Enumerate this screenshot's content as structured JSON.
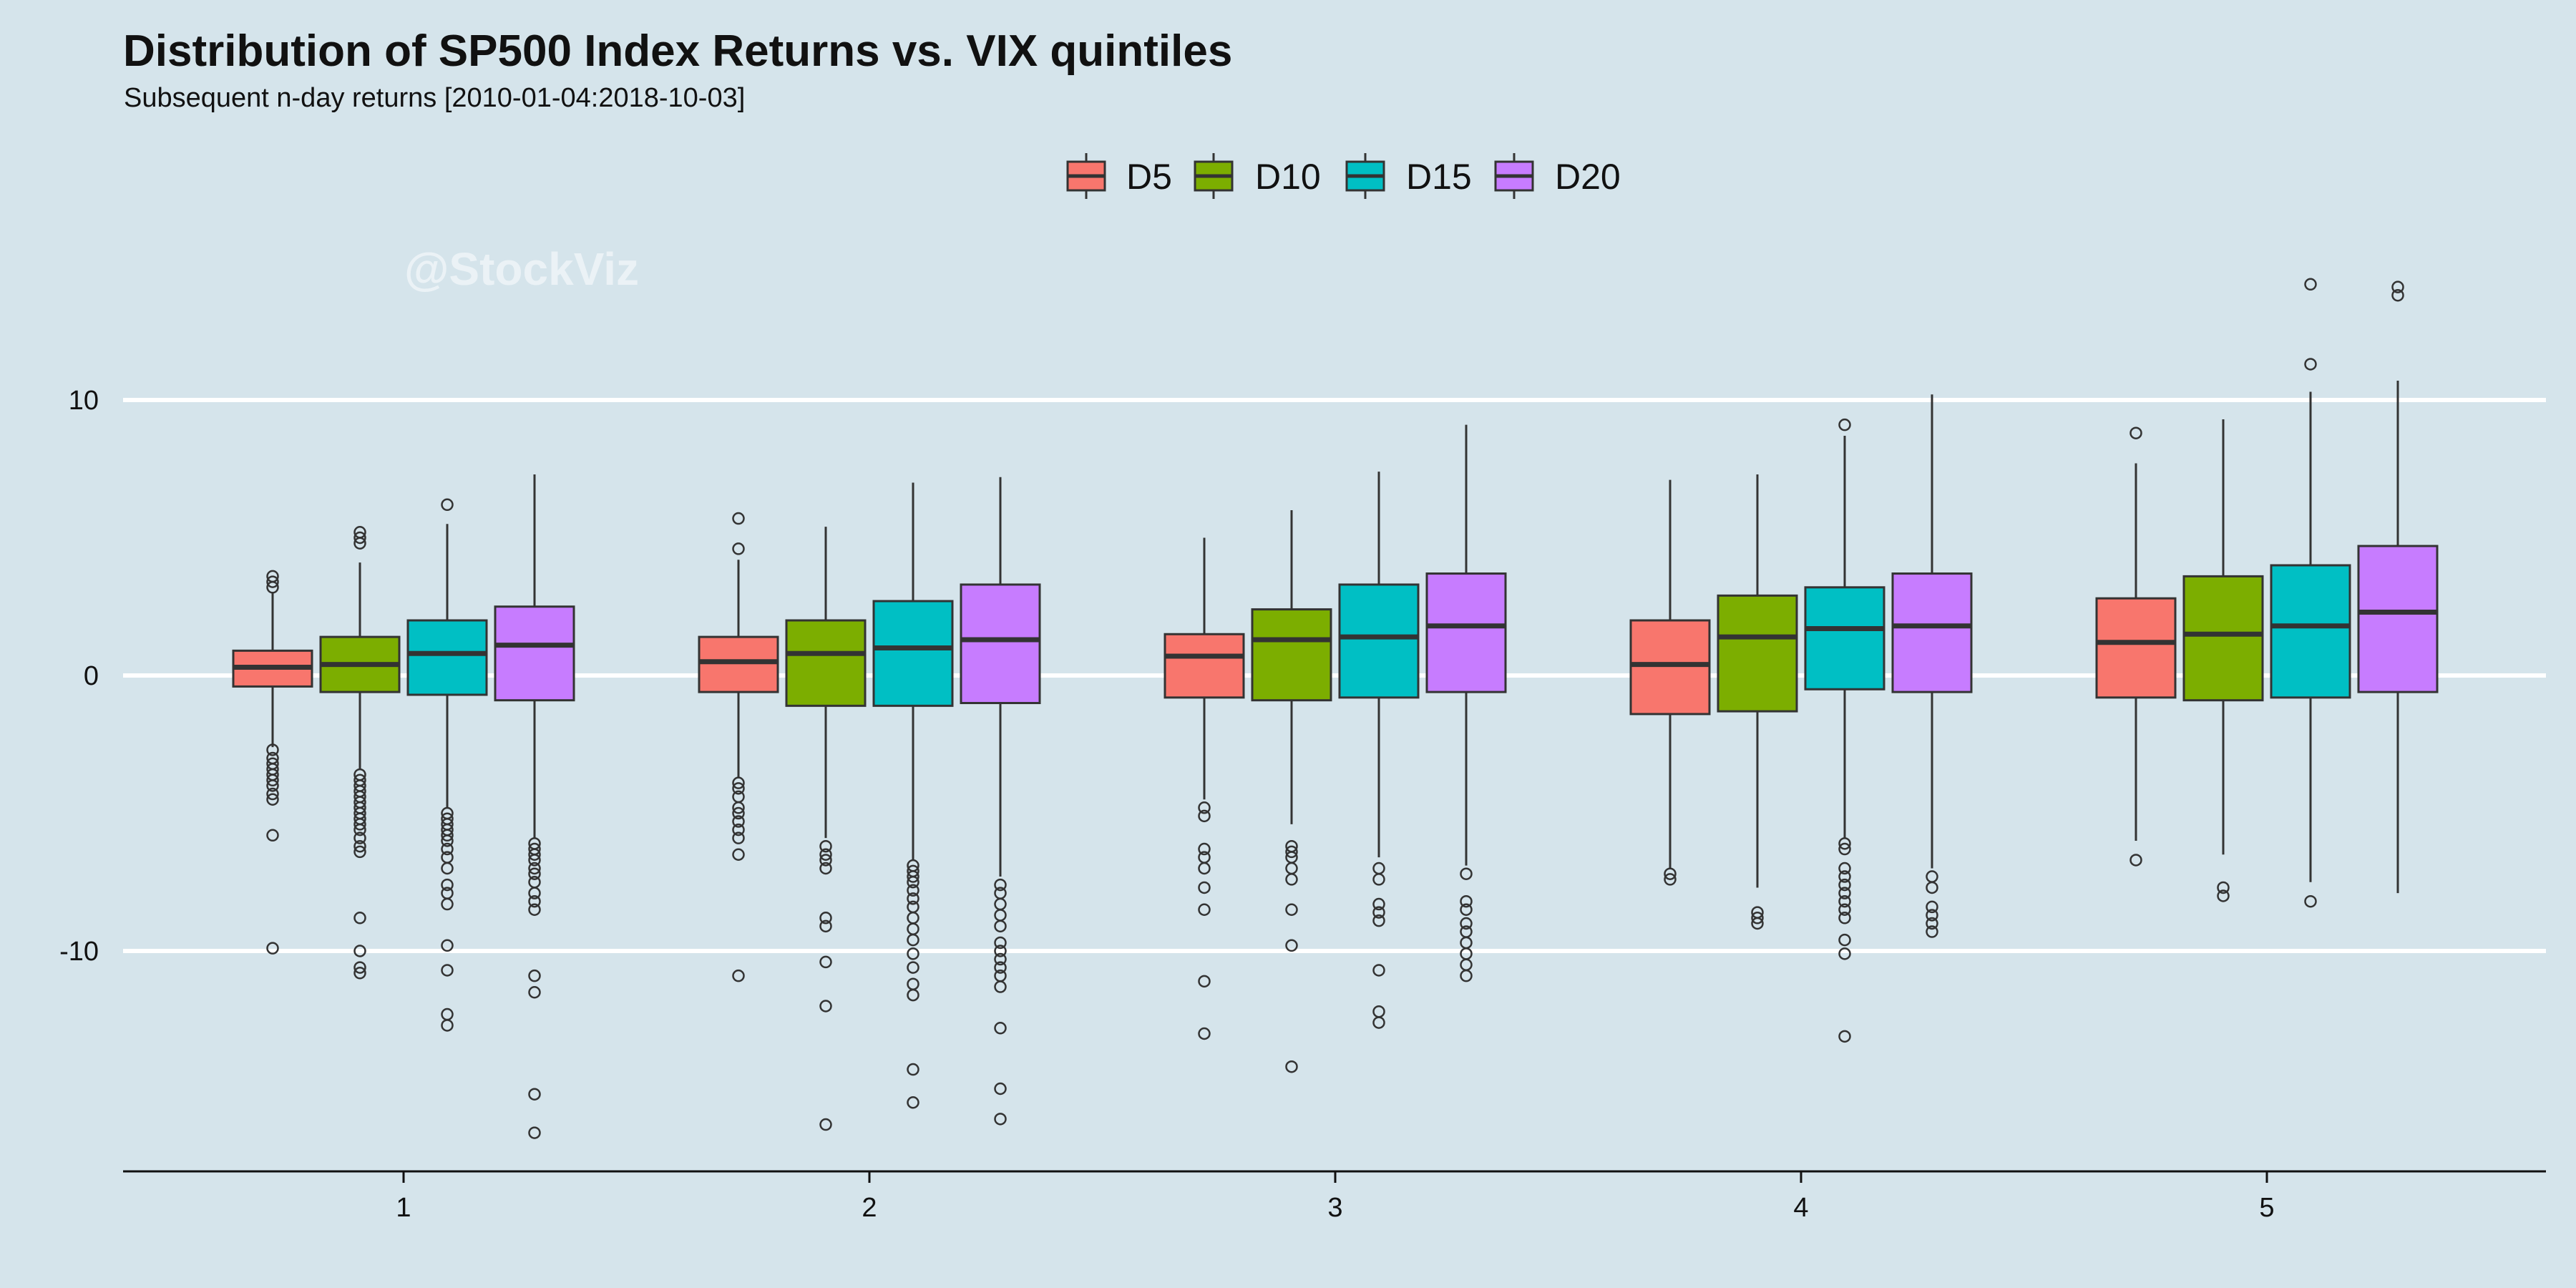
{
  "chart_data": {
    "type": "box",
    "title": "Distribution of SP500 Index Returns vs. VIX quintiles",
    "subtitle": "Subsequent n-day returns [2010-01-04:2018-10-03]",
    "watermark": "@StockViz",
    "xlabel": "",
    "ylabel": "",
    "categories": [
      "1",
      "2",
      "3",
      "4",
      "5"
    ],
    "y_ticks": [
      -10,
      0,
      10
    ],
    "y_tick_labels": [
      "-10",
      "0",
      "10"
    ],
    "ylim": [
      -18,
      16
    ],
    "grid": "horizontal major",
    "legend_position": "top",
    "colors": {
      "background": "#d5e4eb",
      "grid": "#ffffff",
      "D5": "#f8766d",
      "D10": "#7cae00",
      "D15": "#00bfc4",
      "D20": "#c77cff"
    },
    "series": [
      {
        "name": "D5",
        "color": "#f8766d",
        "boxes": [
          {
            "category": "1",
            "whisker_low": -2.6,
            "q1": -0.4,
            "median": 0.3,
            "q3": 0.9,
            "whisker_high": 3.0,
            "outliers": [
              3.6,
              3.4,
              3.2,
              -2.7,
              -3.0,
              -3.2,
              -3.4,
              -3.6,
              -3.8,
              -4.0,
              -4.3,
              -4.5,
              -5.8,
              -9.9
            ]
          },
          {
            "category": "2",
            "whisker_low": -3.7,
            "q1": -0.6,
            "median": 0.5,
            "q3": 1.4,
            "whisker_high": 4.2,
            "outliers": [
              5.7,
              4.6,
              -3.9,
              -4.1,
              -4.4,
              -4.8,
              -5.0,
              -5.3,
              -5.6,
              -5.9,
              -6.5,
              -10.9
            ]
          },
          {
            "category": "3",
            "whisker_low": -4.5,
            "q1": -0.8,
            "median": 0.7,
            "q3": 1.5,
            "whisker_high": 5.0,
            "outliers": [
              -4.8,
              -5.1,
              -6.3,
              -6.6,
              -7.0,
              -7.7,
              -8.5,
              -11.1,
              -13.0
            ]
          },
          {
            "category": "4",
            "whisker_low": -7.0,
            "q1": -1.4,
            "median": 0.4,
            "q3": 2.0,
            "whisker_high": 7.1,
            "outliers": [
              -7.2,
              -7.4
            ]
          },
          {
            "category": "5",
            "whisker_low": -6.0,
            "q1": -0.8,
            "median": 1.2,
            "q3": 2.8,
            "whisker_high": 7.7,
            "outliers": [
              8.8,
              -6.7
            ]
          }
        ]
      },
      {
        "name": "D10",
        "color": "#7cae00",
        "boxes": [
          {
            "category": "1",
            "whisker_low": -3.4,
            "q1": -0.6,
            "median": 0.4,
            "q3": 1.4,
            "whisker_high": 4.1,
            "outliers": [
              5.2,
              5.0,
              4.8,
              -3.6,
              -3.8,
              -4.0,
              -4.2,
              -4.4,
              -4.6,
              -4.8,
              -5.0,
              -5.2,
              -5.4,
              -5.6,
              -5.9,
              -6.2,
              -6.4,
              -8.8,
              -10.0,
              -10.6,
              -10.8
            ]
          },
          {
            "category": "2",
            "whisker_low": -5.9,
            "q1": -1.1,
            "median": 0.8,
            "q3": 2.0,
            "whisker_high": 5.4,
            "outliers": [
              -6.2,
              -6.5,
              -6.7,
              -7.0,
              -8.8,
              -9.1,
              -10.4,
              -12.0,
              -16.3
            ]
          },
          {
            "category": "3",
            "whisker_low": -5.4,
            "q1": -0.9,
            "median": 1.3,
            "q3": 2.4,
            "whisker_high": 6.0,
            "outliers": [
              -6.2,
              -6.4,
              -6.6,
              -7.0,
              -7.4,
              -8.5,
              -9.8,
              -14.2
            ]
          },
          {
            "category": "4",
            "whisker_low": -7.7,
            "q1": -1.3,
            "median": 1.4,
            "q3": 2.9,
            "whisker_high": 7.3,
            "outliers": [
              -8.6,
              -8.8,
              -9.0
            ]
          },
          {
            "category": "5",
            "whisker_low": -6.5,
            "q1": -0.9,
            "median": 1.5,
            "q3": 3.6,
            "whisker_high": 9.3,
            "outliers": [
              -7.7,
              -8.0
            ]
          }
        ]
      },
      {
        "name": "D15",
        "color": "#00bfc4",
        "boxes": [
          {
            "category": "1",
            "whisker_low": -4.8,
            "q1": -0.7,
            "median": 0.8,
            "q3": 2.0,
            "whisker_high": 5.5,
            "outliers": [
              6.2,
              -5.0,
              -5.2,
              -5.4,
              -5.6,
              -5.8,
              -6.0,
              -6.3,
              -6.6,
              -7.0,
              -7.6,
              -7.9,
              -8.3,
              -9.8,
              -10.7,
              -12.3,
              -12.7
            ]
          },
          {
            "category": "2",
            "whisker_low": -6.7,
            "q1": -1.1,
            "median": 1.0,
            "q3": 2.7,
            "whisker_high": 7.0,
            "outliers": [
              -6.9,
              -7.1,
              -7.3,
              -7.5,
              -7.8,
              -8.1,
              -8.4,
              -8.8,
              -9.2,
              -9.6,
              -10.1,
              -10.6,
              -11.2,
              -11.6,
              -14.3,
              -15.5
            ]
          },
          {
            "category": "3",
            "whisker_low": -6.6,
            "q1": -0.8,
            "median": 1.4,
            "q3": 3.3,
            "whisker_high": 7.4,
            "outliers": [
              -7.0,
              -7.4,
              -8.3,
              -8.6,
              -8.9,
              -10.7,
              -12.2,
              -12.6
            ]
          },
          {
            "category": "4",
            "whisker_low": -5.9,
            "q1": -0.5,
            "median": 1.7,
            "q3": 3.2,
            "whisker_high": 8.7,
            "outliers": [
              9.1,
              -6.1,
              -6.3,
              -7.0,
              -7.3,
              -7.6,
              -7.9,
              -8.2,
              -8.5,
              -8.8,
              -9.6,
              -10.1,
              -13.1
            ]
          },
          {
            "category": "5",
            "whisker_low": -7.5,
            "q1": -0.8,
            "median": 1.8,
            "q3": 4.0,
            "whisker_high": 10.3,
            "outliers": [
              14.2,
              11.3,
              -8.2
            ]
          }
        ]
      },
      {
        "name": "D20",
        "color": "#c77cff",
        "boxes": [
          {
            "category": "1",
            "whisker_low": -5.9,
            "q1": -0.9,
            "median": 1.1,
            "q3": 2.5,
            "whisker_high": 7.3,
            "outliers": [
              -6.1,
              -6.3,
              -6.5,
              -6.7,
              -7.0,
              -7.2,
              -7.5,
              -7.9,
              -8.2,
              -8.5,
              -10.9,
              -11.5,
              -15.2,
              -16.6
            ]
          },
          {
            "category": "2",
            "whisker_low": -7.3,
            "q1": -1.0,
            "median": 1.3,
            "q3": 3.3,
            "whisker_high": 7.2,
            "outliers": [
              -7.6,
              -7.9,
              -8.3,
              -8.7,
              -9.1,
              -9.7,
              -10.0,
              -10.3,
              -10.6,
              -10.9,
              -11.3,
              -12.8,
              -15.0,
              -16.1
            ]
          },
          {
            "category": "3",
            "whisker_low": -6.9,
            "q1": -0.6,
            "median": 1.8,
            "q3": 3.7,
            "whisker_high": 9.1,
            "outliers": [
              -7.2,
              -8.2,
              -8.5,
              -9.0,
              -9.3,
              -9.7,
              -10.1,
              -10.5,
              -10.9
            ]
          },
          {
            "category": "4",
            "whisker_low": -7.0,
            "q1": -0.6,
            "median": 1.8,
            "q3": 3.7,
            "whisker_high": 10.2,
            "outliers": [
              -7.3,
              -7.7,
              -8.4,
              -8.7,
              -9.0,
              -9.3
            ]
          },
          {
            "category": "5",
            "whisker_low": -7.9,
            "q1": -0.6,
            "median": 2.3,
            "q3": 4.7,
            "whisker_high": 10.7,
            "outliers": [
              14.1,
              13.8
            ]
          }
        ]
      }
    ]
  }
}
